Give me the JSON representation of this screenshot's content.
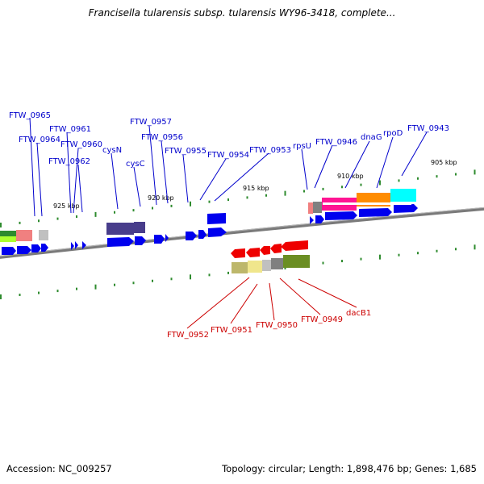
{
  "title": "Francisella tularensis subsp. tularensis WY96-3418, complete...",
  "accession": "Accession: NC_009257",
  "topology": "Topology: circular; Length: 1,898,476 bp; Genes: 1,685",
  "colors": {
    "forward_gene": "#0000ee",
    "reverse_gene": "#ee0000",
    "forward_label": "#0000cc",
    "reverse_label": "#cc0000",
    "backbone": "#808080",
    "tick": "#2e8b2e"
  },
  "scale_labels": [
    "925 kbp",
    "920 kbp",
    "915 kbp",
    "910 kbp",
    "905 kbp"
  ],
  "forward_genes": [
    "FTW_0965",
    "FTW_0964",
    "FTW_0961",
    "FTW_0960",
    "FTW_0962",
    "cysN",
    "cysC",
    "FTW_0957",
    "FTW_0956",
    "FTW_0955",
    "FTW_0954",
    "FTW_0953",
    "rpsU",
    "FTW_0946",
    "dnaG",
    "rpoD",
    "FTW_0943"
  ],
  "reverse_genes": [
    "FTW_0952",
    "FTW_0951",
    "FTW_0950",
    "FTW_0949",
    "dacB1"
  ]
}
